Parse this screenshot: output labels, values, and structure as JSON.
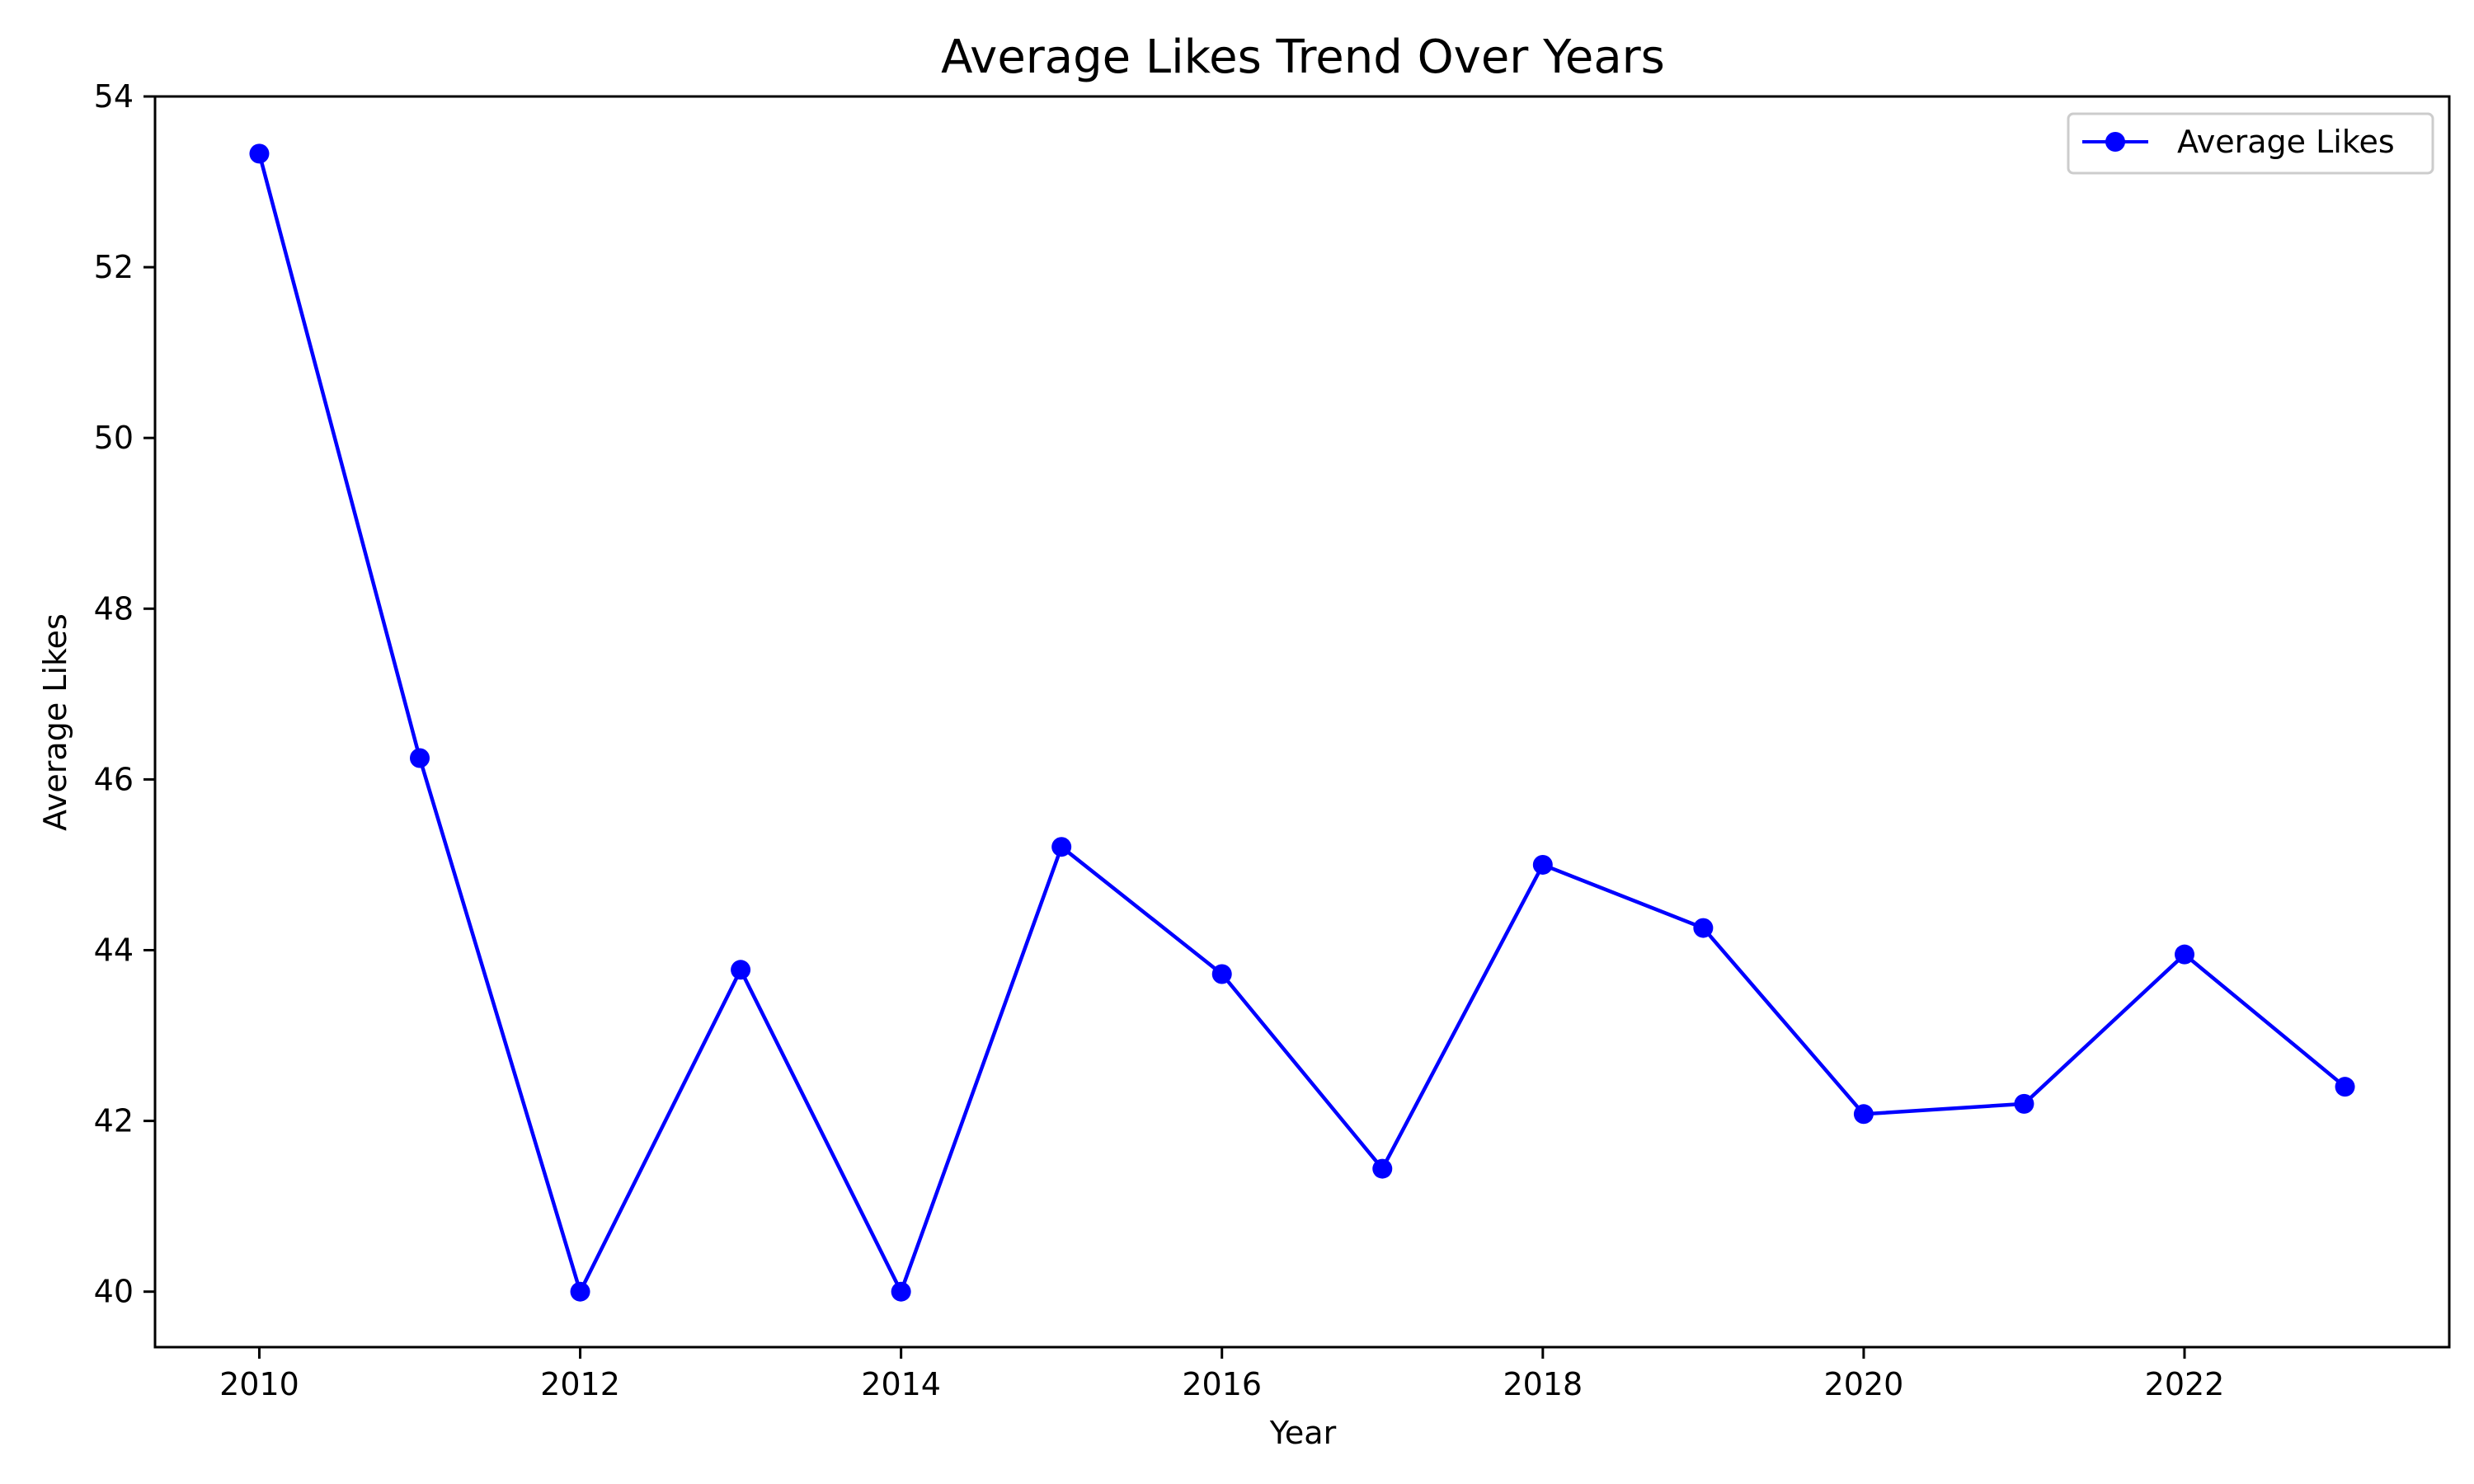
{
  "chart_data": {
    "type": "line",
    "title": "Average Likes Trend Over Years",
    "xlabel": "Year",
    "ylabel": "Average Likes",
    "x": [
      2010,
      2011,
      2012,
      2013,
      2014,
      2015,
      2016,
      2017,
      2018,
      2019,
      2020,
      2021,
      2022,
      2023
    ],
    "series": [
      {
        "name": "Average Likes",
        "color": "#0000ff",
        "marker": "circle",
        "values": [
          53.33,
          46.25,
          40.0,
          43.77,
          40.0,
          45.21,
          43.72,
          41.44,
          45.0,
          44.26,
          42.08,
          42.2,
          43.95,
          42.4
        ]
      }
    ],
    "xlim": [
      2009.35,
      2023.65
    ],
    "ylim": [
      39.35,
      54.0
    ],
    "xticks": [
      "2010",
      "2012",
      "2014",
      "2016",
      "2018",
      "2020",
      "2022"
    ],
    "yticks": [
      "40",
      "42",
      "44",
      "46",
      "48",
      "50",
      "52",
      "54"
    ],
    "grid": false,
    "legend_position": "top-right"
  }
}
